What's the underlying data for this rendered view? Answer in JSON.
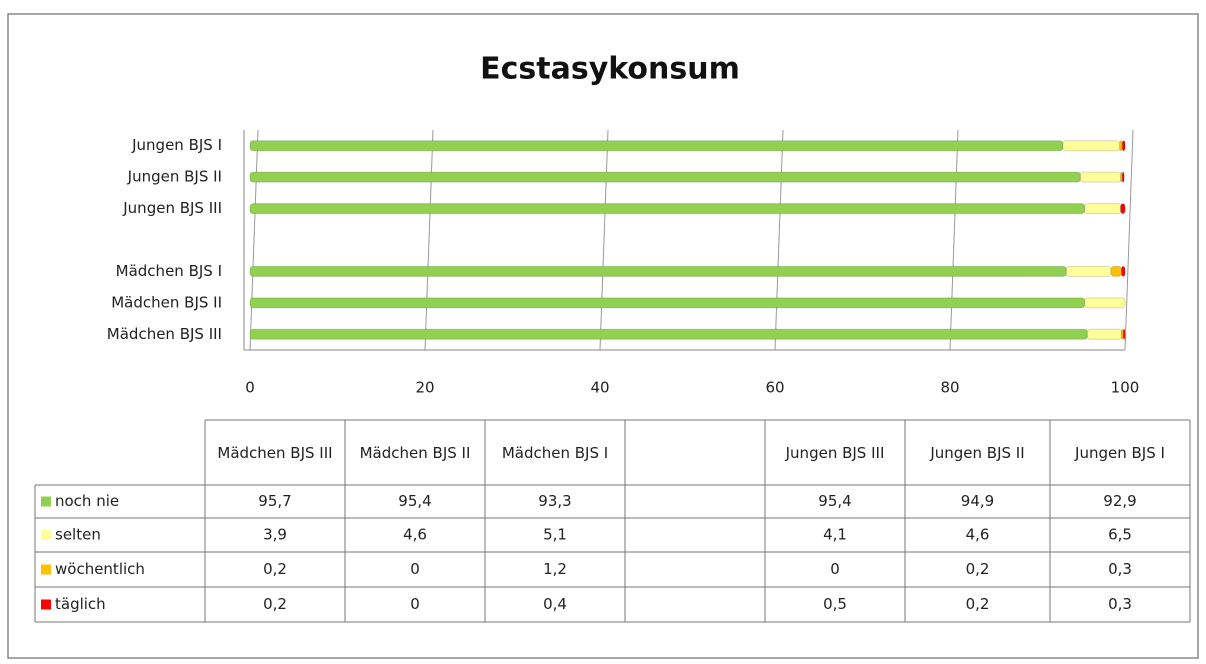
{
  "chart_data": {
    "type": "bar",
    "orientation": "horizontal",
    "stacked": true,
    "title": "Ecstasykonsum",
    "categories": [
      "Mädchen BJS III",
      "Mädchen BJS II",
      "Mädchen BJS I",
      null,
      "Jungen BJS III",
      "Jungen BJS II",
      "Jungen BJS I"
    ],
    "series": [
      {
        "name": "noch nie",
        "color": "#92d050",
        "values": [
          95.7,
          95.4,
          93.3,
          null,
          95.4,
          94.9,
          92.9
        ]
      },
      {
        "name": "selten",
        "color": "#ffff99",
        "values": [
          3.9,
          4.6,
          5.1,
          null,
          4.1,
          4.6,
          6.5
        ]
      },
      {
        "name": "wöchentlich",
        "color": "#ffc000",
        "values": [
          0.2,
          0,
          1.2,
          null,
          0,
          0.2,
          0.3
        ]
      },
      {
        "name": "täglich",
        "color": "#ff0000",
        "values": [
          0.2,
          0,
          0.4,
          null,
          0.5,
          0.2,
          0.3
        ]
      }
    ],
    "xlim": [
      0,
      100
    ],
    "xticks": [
      0,
      20,
      40,
      60,
      80,
      100
    ],
    "grid": true,
    "data_table": true
  }
}
